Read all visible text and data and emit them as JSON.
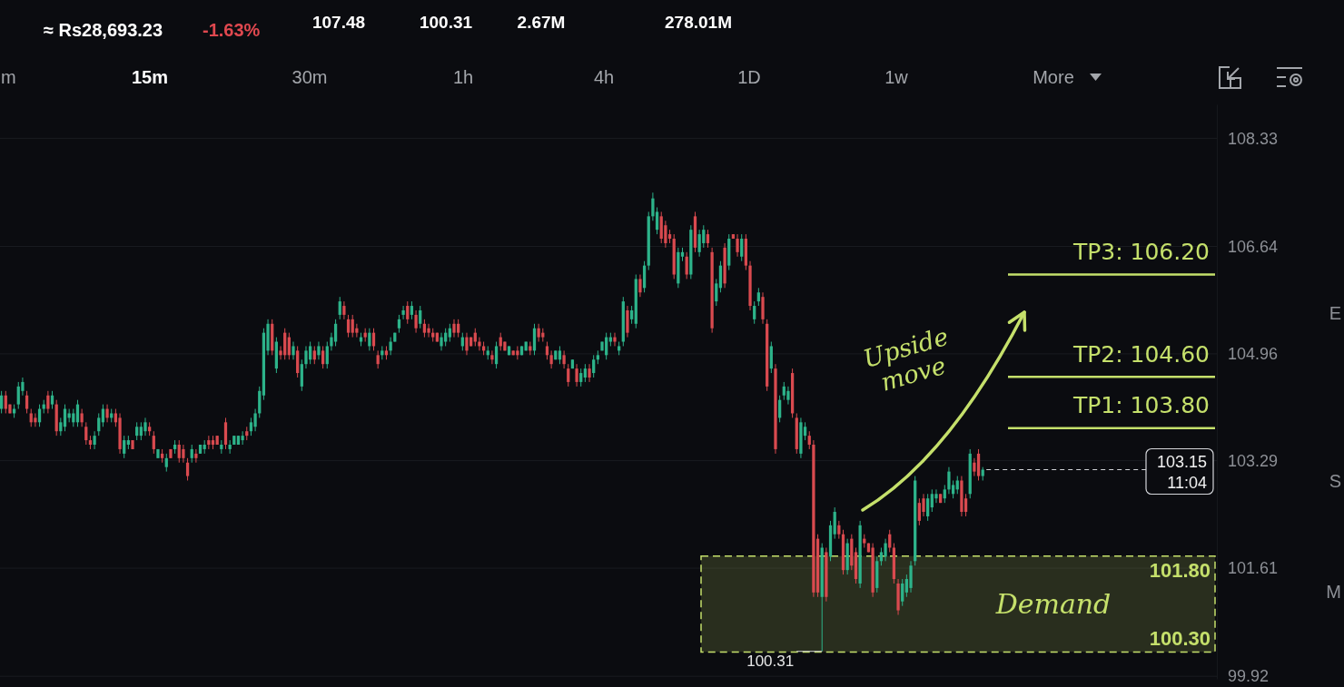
{
  "chart_data": {
    "type": "candlestick",
    "categories": [
      null,
      null,
      null,
      null,
      null,
      null,
      null,
      null,
      null,
      null,
      null,
      null,
      null,
      null,
      null,
      null,
      null,
      null,
      null,
      null,
      null,
      null,
      null,
      null,
      null,
      null,
      null,
      null,
      null,
      null,
      null,
      null,
      null,
      null,
      null,
      null,
      null,
      null,
      null,
      null,
      null,
      null,
      null,
      null,
      null,
      null,
      null,
      null,
      null,
      null,
      null,
      null,
      null,
      null,
      null,
      null,
      null,
      null,
      null,
      null,
      null,
      null,
      null,
      null,
      null,
      null,
      null,
      null,
      null,
      null,
      null,
      null,
      null,
      null,
      null,
      null,
      null,
      null,
      null,
      null,
      null,
      null,
      null,
      null,
      null,
      null,
      null,
      null,
      null,
      null,
      null,
      null,
      null,
      null,
      null,
      null,
      null,
      null,
      null,
      null,
      null,
      null,
      null,
      null,
      null,
      null,
      null,
      null,
      null,
      null,
      null,
      null,
      null,
      null,
      null,
      null,
      null,
      null,
      null,
      null,
      null,
      null,
      null,
      null,
      null,
      null,
      null,
      null,
      null,
      null,
      null,
      null,
      null,
      null,
      null,
      null,
      null,
      null,
      null,
      null,
      null,
      null,
      null,
      null,
      null,
      null,
      null,
      null,
      null,
      null,
      null,
      null,
      null,
      null,
      null,
      null,
      null,
      null,
      null,
      null,
      null,
      null,
      null,
      null,
      null,
      null,
      null,
      null,
      null,
      null,
      null,
      null,
      null,
      null,
      null,
      null,
      null,
      null,
      null,
      null,
      null,
      null,
      null,
      null,
      null,
      null,
      null,
      null,
      null,
      null,
      null,
      null,
      null,
      null,
      null,
      null,
      null,
      null,
      null,
      null,
      null,
      null,
      null,
      null,
      null,
      null,
      null,
      null,
      null,
      null,
      null,
      null,
      null,
      null,
      null,
      null,
      null,
      null,
      null,
      null,
      null,
      null,
      null,
      null,
      null,
      null,
      null,
      null,
      null,
      null,
      null,
      null,
      null,
      null,
      null,
      null,
      null,
      null,
      null,
      null,
      null,
      null,
      null,
      null,
      null,
      null,
      null,
      null,
      null,
      null,
      null,
      null,
      null,
      null,
      null,
      null,
      null,
      null,
      null,
      null,
      null,
      null,
      null,
      null,
      null,
      null,
      null,
      null,
      null,
      null,
      null,
      null,
      null,
      null,
      null,
      null,
      null,
      null,
      null,
      null,
      null,
      null,
      null,
      null,
      null,
      null,
      null,
      null
    ],
    "ohlc": [
      [
        104.1,
        104.38,
        104.03,
        104.31
      ],
      [
        104.31,
        104.38,
        104.03,
        104.1
      ],
      [
        104.17,
        104.17,
        104.03,
        104.03
      ],
      [
        104.03,
        104.17,
        103.96,
        104.1
      ],
      [
        104.17,
        104.52,
        104.1,
        104.45
      ],
      [
        104.38,
        104.59,
        104.31,
        104.52
      ],
      [
        104.31,
        104.38,
        104.03,
        104.1
      ],
      [
        104.03,
        104.1,
        103.82,
        103.89
      ],
      [
        103.96,
        104.03,
        103.82,
        103.89
      ],
      [
        103.89,
        104.17,
        103.82,
        104.1
      ],
      [
        104.1,
        104.24,
        104.03,
        104.17
      ],
      [
        104.31,
        104.38,
        104.03,
        104.1
      ],
      [
        104.17,
        104.38,
        104.1,
        104.31
      ],
      [
        104.17,
        104.24,
        103.68,
        103.75
      ],
      [
        103.75,
        103.96,
        103.68,
        103.89
      ],
      [
        103.82,
        104.17,
        103.75,
        104.1
      ],
      [
        103.96,
        104.1,
        103.89,
        104.03
      ],
      [
        103.89,
        104.1,
        103.82,
        104.03
      ],
      [
        103.89,
        104.24,
        103.82,
        104.17
      ],
      [
        104.03,
        104.1,
        103.82,
        103.89
      ],
      [
        103.82,
        103.89,
        103.54,
        103.61
      ],
      [
        103.61,
        103.68,
        103.47,
        103.54
      ],
      [
        103.54,
        103.75,
        103.47,
        103.68
      ],
      [
        103.75,
        104.03,
        103.68,
        103.96
      ],
      [
        103.89,
        104.17,
        103.82,
        104.1
      ],
      [
        104.1,
        104.17,
        103.89,
        103.96
      ],
      [
        103.96,
        104.1,
        103.89,
        104.03
      ],
      [
        104.03,
        104.1,
        103.82,
        103.89
      ],
      [
        103.96,
        104.03,
        103.4,
        103.47
      ],
      [
        103.4,
        103.68,
        103.33,
        103.61
      ],
      [
        103.54,
        103.68,
        103.47,
        103.61
      ],
      [
        103.61,
        103.61,
        103.47,
        103.47
      ],
      [
        103.68,
        103.89,
        103.61,
        103.82
      ],
      [
        103.68,
        103.89,
        103.61,
        103.82
      ],
      [
        103.75,
        103.96,
        103.68,
        103.89
      ],
      [
        103.82,
        103.89,
        103.68,
        103.75
      ],
      [
        103.68,
        103.75,
        103.4,
        103.47
      ],
      [
        103.33,
        103.47,
        103.33,
        103.47
      ],
      [
        103.4,
        103.47,
        103.26,
        103.33
      ],
      [
        103.19,
        103.4,
        103.12,
        103.33
      ],
      [
        103.47,
        103.47,
        103.33,
        103.33
      ],
      [
        103.47,
        103.61,
        103.4,
        103.54
      ],
      [
        103.54,
        103.61,
        103.26,
        103.33
      ],
      [
        103.47,
        103.54,
        103.26,
        103.33
      ],
      [
        103.26,
        103.33,
        102.98,
        103.05
      ],
      [
        103.33,
        103.54,
        103.26,
        103.47
      ],
      [
        103.4,
        103.47,
        103.26,
        103.33
      ],
      [
        103.4,
        103.54,
        103.4,
        103.54
      ],
      [
        103.47,
        103.61,
        103.4,
        103.54
      ],
      [
        103.61,
        103.68,
        103.47,
        103.54
      ],
      [
        103.61,
        103.68,
        103.47,
        103.54
      ],
      [
        103.68,
        103.68,
        103.54,
        103.54
      ],
      [
        103.47,
        103.61,
        103.4,
        103.54
      ],
      [
        103.89,
        103.96,
        103.47,
        103.54
      ],
      [
        103.47,
        103.61,
        103.4,
        103.54
      ],
      [
        103.54,
        103.68,
        103.54,
        103.68
      ],
      [
        103.54,
        103.68,
        103.54,
        103.68
      ],
      [
        103.61,
        103.75,
        103.54,
        103.68
      ],
      [
        103.75,
        103.82,
        103.61,
        103.68
      ],
      [
        103.75,
        103.96,
        103.68,
        103.89
      ],
      [
        103.82,
        104.1,
        103.75,
        104.03
      ],
      [
        104.03,
        104.45,
        103.96,
        104.38
      ],
      [
        104.31,
        105.36,
        104.24,
        105.29
      ],
      [
        105.01,
        105.5,
        104.94,
        105.43
      ],
      [
        105.43,
        105.5,
        104.94,
        105.01
      ],
      [
        104.73,
        105.22,
        104.66,
        105.15
      ],
      [
        105.01,
        105.08,
        104.87,
        104.94
      ],
      [
        105.29,
        105.36,
        104.87,
        104.94
      ],
      [
        105.22,
        105.29,
        104.87,
        104.94
      ],
      [
        104.94,
        105.15,
        104.87,
        105.08
      ],
      [
        105.01,
        105.08,
        104.59,
        104.66
      ],
      [
        104.45,
        104.87,
        104.38,
        104.8
      ],
      [
        104.8,
        105.08,
        104.73,
        105.01
      ],
      [
        104.87,
        105.15,
        104.8,
        105.08
      ],
      [
        105.01,
        105.08,
        104.8,
        104.87
      ],
      [
        104.94,
        105.15,
        104.87,
        105.08
      ],
      [
        105.01,
        105.08,
        104.73,
        104.8
      ],
      [
        104.8,
        105.15,
        104.73,
        105.08
      ],
      [
        105.08,
        105.29,
        105.01,
        105.22
      ],
      [
        105.15,
        105.5,
        105.08,
        105.43
      ],
      [
        105.57,
        105.85,
        105.5,
        105.78
      ],
      [
        105.71,
        105.78,
        105.5,
        105.57
      ],
      [
        105.5,
        105.57,
        105.22,
        105.29
      ],
      [
        105.5,
        105.57,
        105.22,
        105.29
      ],
      [
        105.36,
        105.43,
        105.22,
        105.29
      ],
      [
        105.15,
        105.29,
        105.08,
        105.22
      ],
      [
        105.29,
        105.36,
        105.15,
        105.22
      ],
      [
        105.08,
        105.36,
        105.01,
        105.29
      ],
      [
        105.29,
        105.36,
        105.01,
        105.08
      ],
      [
        104.94,
        105.01,
        104.73,
        104.8
      ],
      [
        104.94,
        105.08,
        104.87,
        105.01
      ],
      [
        105.01,
        105.08,
        104.87,
        104.94
      ],
      [
        105.01,
        105.22,
        104.94,
        105.15
      ],
      [
        105.15,
        105.29,
        105.15,
        105.29
      ],
      [
        105.36,
        105.57,
        105.29,
        105.5
      ],
      [
        105.57,
        105.71,
        105.5,
        105.64
      ],
      [
        105.71,
        105.78,
        105.43,
        105.5
      ],
      [
        105.57,
        105.78,
        105.5,
        105.71
      ],
      [
        105.57,
        105.64,
        105.29,
        105.36
      ],
      [
        105.43,
        105.71,
        105.36,
        105.64
      ],
      [
        105.43,
        105.5,
        105.22,
        105.29
      ],
      [
        105.36,
        105.43,
        105.22,
        105.29
      ],
      [
        105.29,
        105.36,
        105.15,
        105.22
      ],
      [
        105.29,
        105.29,
        105.15,
        105.15
      ],
      [
        105.08,
        105.29,
        105.01,
        105.22
      ],
      [
        105.15,
        105.36,
        105.08,
        105.29
      ],
      [
        105.22,
        105.43,
        105.15,
        105.36
      ],
      [
        105.43,
        105.5,
        105.22,
        105.29
      ],
      [
        105.43,
        105.5,
        105.22,
        105.29
      ],
      [
        105.08,
        105.29,
        105.01,
        105.22
      ],
      [
        105.22,
        105.29,
        104.94,
        105.01
      ],
      [
        105.22,
        105.22,
        105.08,
        105.08
      ],
      [
        105.29,
        105.36,
        105.08,
        105.15
      ],
      [
        105.15,
        105.22,
        105.01,
        105.08
      ],
      [
        105.08,
        105.15,
        104.94,
        105.01
      ],
      [
        104.94,
        105.08,
        104.87,
        105.01
      ],
      [
        104.94,
        105.01,
        104.8,
        104.87
      ],
      [
        104.8,
        105.15,
        104.73,
        105.08
      ],
      [
        105.22,
        105.29,
        105.01,
        105.08
      ],
      [
        105.15,
        105.15,
        105.01,
        105.01
      ],
      [
        104.94,
        105.08,
        104.94,
        105.08
      ],
      [
        105.01,
        105.01,
        104.94,
        104.94
      ],
      [
        105.01,
        105.08,
        104.87,
        104.94
      ],
      [
        104.94,
        105.08,
        104.94,
        105.08
      ],
      [
        105.01,
        105.15,
        105.01,
        105.15
      ],
      [
        105.08,
        105.15,
        104.94,
        105.01
      ],
      [
        105.01,
        105.43,
        104.94,
        105.36
      ],
      [
        105.36,
        105.43,
        105.15,
        105.22
      ],
      [
        105.29,
        105.36,
        105.15,
        105.22
      ],
      [
        105.08,
        105.15,
        104.87,
        104.94
      ],
      [
        104.94,
        105.01,
        104.73,
        104.8
      ],
      [
        104.87,
        105.01,
        104.87,
        105.01
      ],
      [
        104.87,
        105.08,
        104.8,
        105.01
      ],
      [
        104.94,
        105.01,
        104.73,
        104.8
      ],
      [
        104.73,
        104.8,
        104.45,
        104.52
      ],
      [
        104.73,
        104.87,
        104.73,
        104.87
      ],
      [
        104.73,
        104.8,
        104.45,
        104.52
      ],
      [
        104.52,
        104.73,
        104.45,
        104.66
      ],
      [
        104.59,
        104.8,
        104.52,
        104.73
      ],
      [
        104.73,
        104.8,
        104.52,
        104.59
      ],
      [
        104.66,
        104.94,
        104.59,
        104.87
      ],
      [
        104.87,
        105.01,
        104.8,
        104.94
      ],
      [
        105.01,
        105.15,
        105.01,
        105.15
      ],
      [
        104.94,
        105.29,
        104.87,
        105.22
      ],
      [
        105.15,
        105.29,
        105.08,
        105.22
      ],
      [
        105.22,
        105.29,
        105.08,
        105.15
      ],
      [
        105.01,
        105.15,
        104.94,
        105.08
      ],
      [
        105.15,
        105.85,
        105.08,
        105.78
      ],
      [
        105.64,
        105.71,
        105.22,
        105.29
      ],
      [
        105.5,
        105.71,
        105.43,
        105.64
      ],
      [
        105.43,
        106.2,
        105.36,
        106.13
      ],
      [
        106.13,
        106.2,
        105.85,
        105.92
      ],
      [
        105.99,
        106.41,
        105.92,
        106.34
      ],
      [
        106.34,
        107.18,
        106.27,
        107.11
      ],
      [
        107.11,
        107.48,
        107.04,
        107.39
      ],
      [
        106.9,
        107.25,
        106.83,
        107.18
      ],
      [
        107.11,
        107.18,
        106.69,
        106.76
      ],
      [
        106.97,
        107.04,
        106.62,
        106.69
      ],
      [
        106.83,
        106.9,
        106.69,
        106.76
      ],
      [
        106.76,
        106.83,
        106.13,
        106.2
      ],
      [
        106.06,
        106.62,
        105.99,
        106.55
      ],
      [
        106.48,
        106.62,
        106.41,
        106.55
      ],
      [
        106.48,
        106.55,
        106.13,
        106.2
      ],
      [
        106.2,
        106.97,
        106.13,
        106.9
      ],
      [
        107.11,
        107.18,
        106.55,
        106.62
      ],
      [
        106.55,
        106.9,
        106.48,
        106.83
      ],
      [
        106.69,
        106.97,
        106.62,
        106.9
      ],
      [
        106.83,
        106.9,
        106.62,
        106.69
      ],
      [
        106.55,
        106.62,
        105.29,
        105.36
      ],
      [
        105.78,
        106.13,
        105.71,
        106.06
      ],
      [
        105.99,
        106.41,
        105.92,
        106.34
      ],
      [
        106.62,
        106.69,
        105.99,
        106.06
      ],
      [
        106.34,
        106.83,
        106.27,
        106.76
      ],
      [
        106.83,
        106.83,
        106.76,
        106.76
      ],
      [
        106.76,
        106.83,
        106.48,
        106.55
      ],
      [
        106.48,
        106.83,
        106.41,
        106.76
      ],
      [
        106.76,
        106.83,
        106.27,
        106.34
      ],
      [
        106.34,
        106.41,
        105.64,
        105.71
      ],
      [
        105.5,
        105.78,
        105.43,
        105.71
      ],
      [
        105.78,
        105.99,
        105.71,
        105.92
      ],
      [
        105.85,
        105.92,
        105.43,
        105.5
      ],
      [
        105.43,
        105.5,
        104.38,
        104.45
      ],
      [
        104.73,
        105.15,
        104.66,
        105.08
      ],
      [
        104.73,
        104.8,
        103.4,
        103.47
      ],
      [
        103.96,
        104.31,
        103.89,
        104.24
      ],
      [
        104.31,
        104.52,
        104.24,
        104.45
      ],
      [
        104.24,
        104.45,
        104.17,
        104.38
      ],
      [
        104.66,
        104.73,
        103.96,
        104.03
      ],
      [
        103.96,
        104.03,
        103.4,
        103.47
      ],
      [
        103.4,
        103.96,
        103.33,
        103.89
      ],
      [
        103.68,
        103.89,
        103.61,
        103.82
      ],
      [
        103.68,
        103.75,
        103.47,
        103.54
      ],
      [
        103.54,
        103.61,
        101.16,
        101.23
      ],
      [
        102.07,
        102.14,
        101.16,
        101.23
      ],
      [
        101.16,
        102.0,
        100.31,
        101.93
      ],
      [
        101.86,
        101.93,
        101.09,
        101.16
      ],
      [
        101.79,
        102.35,
        101.72,
        102.28
      ],
      [
        102.14,
        102.56,
        102.07,
        102.49
      ],
      [
        102.28,
        102.35,
        102.07,
        102.14
      ],
      [
        102.14,
        102.21,
        101.51,
        101.58
      ],
      [
        101.58,
        102.07,
        101.51,
        102.0
      ],
      [
        102.07,
        102.14,
        101.58,
        101.65
      ],
      [
        101.86,
        101.93,
        101.37,
        101.44
      ],
      [
        101.37,
        102.35,
        101.3,
        102.28
      ],
      [
        102.07,
        102.14,
        101.93,
        102.0
      ],
      [
        102.0,
        102.0,
        101.86,
        101.86
      ],
      [
        101.93,
        102.0,
        101.16,
        101.23
      ],
      [
        101.3,
        101.79,
        101.23,
        101.72
      ],
      [
        101.72,
        101.93,
        101.65,
        101.86
      ],
      [
        101.79,
        102.07,
        101.72,
        102.0
      ],
      [
        102.14,
        102.21,
        101.86,
        101.93
      ],
      [
        101.93,
        102.0,
        101.37,
        101.44
      ],
      [
        101.37,
        101.44,
        100.88,
        100.95
      ],
      [
        101.09,
        101.44,
        101.02,
        101.37
      ],
      [
        101.23,
        101.51,
        101.16,
        101.44
      ],
      [
        101.3,
        101.72,
        101.23,
        101.65
      ],
      [
        101.72,
        103.05,
        101.65,
        102.98
      ],
      [
        102.63,
        102.7,
        102.28,
        102.35
      ],
      [
        102.7,
        102.77,
        102.42,
        102.49
      ],
      [
        102.42,
        102.77,
        102.35,
        102.7
      ],
      [
        102.56,
        102.84,
        102.49,
        102.77
      ],
      [
        102.7,
        102.84,
        102.63,
        102.77
      ],
      [
        102.77,
        102.77,
        102.63,
        102.63
      ],
      [
        102.7,
        102.91,
        102.63,
        102.84
      ],
      [
        102.84,
        103.19,
        102.77,
        103.12
      ],
      [
        102.77,
        102.98,
        102.7,
        102.91
      ],
      [
        102.84,
        103.05,
        102.77,
        102.98
      ],
      [
        102.98,
        103.05,
        102.42,
        102.49
      ],
      [
        102.7,
        102.77,
        102.42,
        102.49
      ],
      [
        102.77,
        103.47,
        102.7,
        103.4
      ],
      [
        103.26,
        103.33,
        103.05,
        103.12
      ],
      [
        103.4,
        103.47,
        102.98,
        103.05
      ],
      [
        103.05,
        103.19,
        102.98,
        103.15
      ],
      null,
      null,
      null,
      null,
      null,
      null,
      null,
      null,
      null,
      null,
      null,
      null,
      null,
      null,
      null,
      null,
      null,
      null,
      null,
      null,
      null,
      null,
      null,
      null,
      null,
      null,
      null,
      null,
      null,
      null,
      null,
      null,
      null,
      null,
      null,
      null,
      null,
      null,
      null,
      null,
      null,
      null,
      null,
      null,
      null,
      null,
      null,
      null,
      null,
      null,
      null,
      null,
      null,
      null,
      null
    ],
    "colors": [
      "#2db38a",
      "#d94a4f",
      "#d94a4f",
      "#2db38a",
      "#2db38a",
      "#2db38a",
      "#d94a4f",
      "#d94a4f",
      "#d94a4f",
      "#2db38a",
      "#2db38a",
      "#d94a4f",
      "#2db38a",
      "#d94a4f",
      "#2db38a",
      "#2db38a",
      "#2db38a",
      "#2db38a",
      "#2db38a",
      "#d94a4f",
      "#d94a4f",
      "#d94a4f",
      "#2db38a",
      "#2db38a",
      "#2db38a",
      "#d94a4f",
      "#2db38a",
      "#d94a4f",
      "#d94a4f",
      "#2db38a",
      "#2db38a",
      "#d94a4f",
      "#2db38a",
      "#2db38a",
      "#2db38a",
      "#d94a4f",
      "#d94a4f",
      "#2db38a",
      "#d94a4f",
      "#2db38a",
      "#d94a4f",
      "#2db38a",
      "#d94a4f",
      "#d94a4f",
      "#d94a4f",
      "#2db38a",
      "#d94a4f",
      "#2db38a",
      "#2db38a",
      "#d94a4f",
      "#d94a4f",
      "#d94a4f",
      "#2db38a",
      "#d94a4f",
      "#2db38a",
      "#2db38a",
      "#2db38a",
      "#2db38a",
      "#d94a4f",
      "#2db38a",
      "#2db38a",
      "#2db38a",
      "#2db38a",
      "#2db38a",
      "#d94a4f",
      "#2db38a",
      "#d94a4f",
      "#d94a4f",
      "#d94a4f",
      "#2db38a",
      "#d94a4f",
      "#2db38a",
      "#2db38a",
      "#2db38a",
      "#d94a4f",
      "#2db38a",
      "#d94a4f",
      "#2db38a",
      "#2db38a",
      "#2db38a",
      "#2db38a",
      "#d94a4f",
      "#d94a4f",
      "#d94a4f",
      "#d94a4f",
      "#2db38a",
      "#d94a4f",
      "#2db38a",
      "#d94a4f",
      "#d94a4f",
      "#2db38a",
      "#d94a4f",
      "#2db38a",
      "#2db38a",
      "#2db38a",
      "#2db38a",
      "#d94a4f",
      "#2db38a",
      "#d94a4f",
      "#2db38a",
      "#d94a4f",
      "#d94a4f",
      "#d94a4f",
      "#d94a4f",
      "#2db38a",
      "#2db38a",
      "#2db38a",
      "#d94a4f",
      "#d94a4f",
      "#2db38a",
      "#d94a4f",
      "#d94a4f",
      "#d94a4f",
      "#d94a4f",
      "#d94a4f",
      "#2db38a",
      "#d94a4f",
      "#2db38a",
      "#d94a4f",
      "#d94a4f",
      "#2db38a",
      "#d94a4f",
      "#d94a4f",
      "#2db38a",
      "#2db38a",
      "#d94a4f",
      "#2db38a",
      "#d94a4f",
      "#d94a4f",
      "#d94a4f",
      "#d94a4f",
      "#2db38a",
      "#2db38a",
      "#d94a4f",
      "#d94a4f",
      "#2db38a",
      "#d94a4f",
      "#2db38a",
      "#2db38a",
      "#d94a4f",
      "#2db38a",
      "#2db38a",
      "#2db38a",
      "#2db38a",
      "#2db38a",
      "#d94a4f",
      "#2db38a",
      "#2db38a",
      "#d94a4f",
      "#2db38a",
      "#2db38a",
      "#d94a4f",
      "#2db38a",
      "#2db38a",
      "#2db38a",
      "#2db38a",
      "#d94a4f",
      "#d94a4f",
      "#d94a4f",
      "#d94a4f",
      "#2db38a",
      "#2db38a",
      "#d94a4f",
      "#2db38a",
      "#d94a4f",
      "#2db38a",
      "#2db38a",
      "#d94a4f",
      "#d94a4f",
      "#2db38a",
      "#2db38a",
      "#d94a4f",
      "#2db38a",
      "#d94a4f",
      "#d94a4f",
      "#2db38a",
      "#d94a4f",
      "#d94a4f",
      "#2db38a",
      "#2db38a",
      "#d94a4f",
      "#d94a4f",
      "#2db38a",
      "#d94a4f",
      "#2db38a",
      "#2db38a",
      "#2db38a",
      "#d94a4f",
      "#d94a4f",
      "#2db38a",
      "#2db38a",
      "#d94a4f",
      "#d94a4f",
      "#d94a4f",
      "#2db38a",
      "#d94a4f",
      "#2db38a",
      "#2db38a",
      "#d94a4f",
      "#d94a4f",
      "#2db38a",
      "#d94a4f",
      "#d94a4f",
      "#2db38a",
      "#d94a4f",
      "#d94a4f",
      "#d94a4f",
      "#2db38a",
      "#2db38a",
      "#2db38a",
      "#d94a4f",
      "#d94a4f",
      "#d94a4f",
      "#2db38a",
      "#2db38a",
      "#2db38a",
      "#2db38a",
      "#d94a4f",
      "#d94a4f",
      "#2db38a",
      "#2db38a",
      "#2db38a",
      "#d94a4f",
      "#2db38a",
      "#2db38a",
      "#2db38a",
      "#2db38a",
      "#d94a4f",
      "#d94a4f",
      "#2db38a",
      "#d94a4f",
      "#d94a4f",
      "#2db38a",
      null,
      null,
      null,
      null,
      null,
      null,
      null,
      null,
      null,
      null,
      null,
      null,
      null,
      null,
      null,
      null,
      null,
      null,
      null,
      null,
      null,
      null,
      null,
      null,
      null,
      null,
      null,
      null,
      null,
      null,
      null,
      null,
      null,
      null,
      null,
      null,
      null,
      null,
      null,
      null,
      null,
      null,
      null,
      null,
      null,
      null,
      null,
      null,
      null,
      null,
      null,
      null,
      null,
      null,
      null
    ],
    "ylim": [
      99.88,
      108.86
    ],
    "yticks": [
      108.33,
      106.64,
      104.96,
      103.29,
      101.61,
      99.92
    ],
    "grid": "y",
    "tick_labels": "y",
    "ref_lines": [
      {
        "axis": "y",
        "value": 106.2,
        "label": "TP3: 106.20",
        "color": "#c5e06b"
      },
      {
        "axis": "y",
        "value": 104.6,
        "label": "TP2: 104.60",
        "color": "#c5e06b"
      },
      {
        "axis": "y",
        "value": 103.8,
        "label": "TP1: 103.80",
        "color": "#c5e06b"
      },
      {
        "axis": "y",
        "value": 103.15,
        "label": "103.15",
        "color": "#d4d6da",
        "line_style": "dashed"
      }
    ],
    "bands": [
      {
        "axis": "y",
        "from": 100.3,
        "to": 101.8,
        "label": "Demand",
        "color": "#c5e06b"
      }
    ],
    "annotations": [
      "≈ Rs28,693.23",
      "-1.63%",
      "107.48",
      "100.31",
      "2.67M",
      "278.01M",
      "m",
      "15m",
      "30m",
      "1h",
      "4h",
      "1D",
      "1w",
      "More",
      "E",
      "S",
      "M",
      "Upside move",
      "11:04",
      {
        "text": "100.31",
        "y": 100.31
      },
      {
        "text": "101.80",
        "y": 101.8
      },
      {
        "text": "100.30",
        "y": 100.3
      }
    ]
  }
}
